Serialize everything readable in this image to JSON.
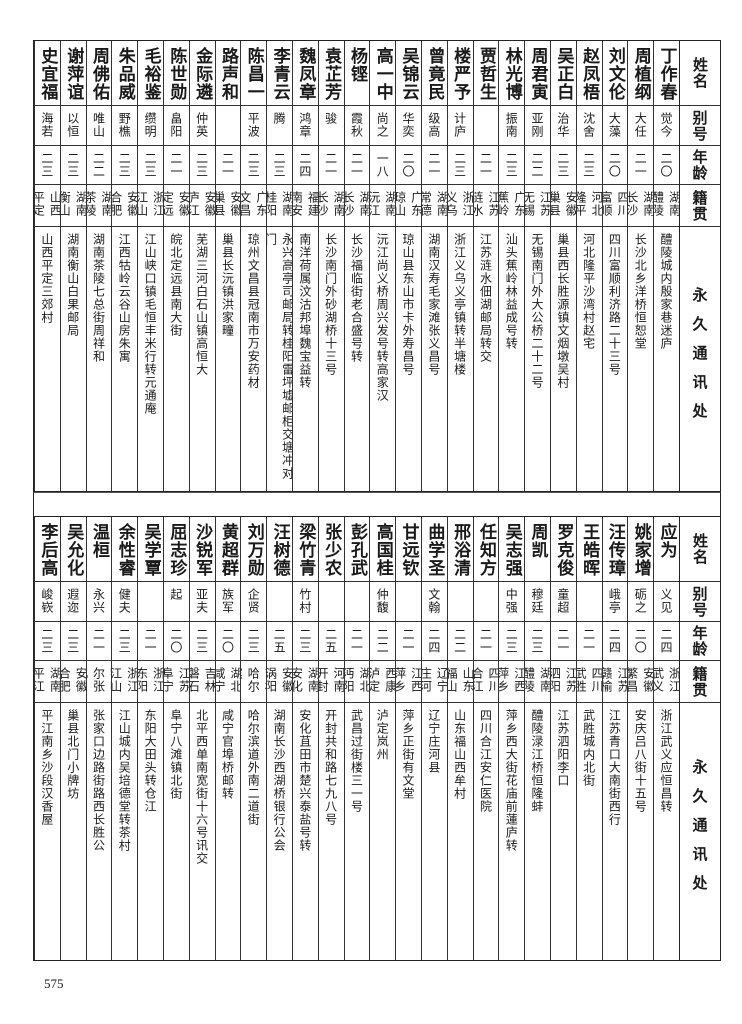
{
  "headers": {
    "name": "姓名",
    "alias": "别号",
    "age": "年龄",
    "origin": "籍贯",
    "address": "永久通讯处"
  },
  "top_table": [
    {
      "name": "丁作春",
      "alias": "觉今",
      "age": "二〇",
      "origin": "湖南醴陵",
      "address": "醴陵城内殷家巷迷庐"
    },
    {
      "name": "周植纲",
      "alias": "大任",
      "age": "二一",
      "origin": "湖南长沙",
      "address": "长沙北乡洋桥恒恕堂"
    },
    {
      "name": "刘文伦",
      "alias": "大藻",
      "age": "二〇",
      "origin": "四川富顺",
      "address": "四川富顺利济路二十三号"
    },
    {
      "name": "赵凤梧",
      "alias": "沈舍",
      "age": "二三",
      "origin": "河北隆平",
      "address": "河北隆平沙湾村赵宅"
    },
    {
      "name": "吴正白",
      "alias": "治华",
      "age": "二三",
      "origin": "安徽巢县",
      "address": "巢县西长胜源镇文烟墩吴村"
    },
    {
      "name": "周君寅",
      "alias": "亚刚",
      "age": "二二",
      "origin": "江苏无锡",
      "address": "无锡南门外大公桥二十二号"
    },
    {
      "name": "林光博",
      "alias": "振南",
      "age": "二三",
      "origin": "广东蕉岭",
      "address": "汕头蕉岭林益成号转"
    },
    {
      "name": "贾哲生",
      "alias": "",
      "age": "二一",
      "origin": "江苏涟水",
      "address": "江苏涟水佃湖邮局转交"
    },
    {
      "name": "楼严予",
      "alias": "计庐",
      "age": "二三",
      "origin": "浙江义乌",
      "address": "浙江义乌义亭镇转半塘楼"
    },
    {
      "name": "曾竟民",
      "alias": "级高",
      "age": "二一",
      "origin": "湖南常德",
      "address": "湖南汉寿毛家滩张义昌号"
    },
    {
      "name": "吴锦云",
      "alias": "华奕",
      "age": "二〇",
      "origin": "广东琼山",
      "address": "琼山县东山市卡外寿昌号"
    },
    {
      "name": "高一中",
      "alias": "尚之",
      "age": "一八",
      "origin": "湖南沅江",
      "address": "沅江尚义桥周兴发号转高家汉"
    },
    {
      "name": "杨铿",
      "alias": "霞秋",
      "age": "二一",
      "origin": "湖南长沙",
      "address": "长沙福临街老合盛号转"
    },
    {
      "name": "袁芷芳",
      "alias": "骏",
      "age": "二一",
      "origin": "湖南长沙",
      "address": "长沙南门外砂湖桥十三号"
    },
    {
      "name": "魏凤章",
      "alias": "鸿章",
      "age": "二四",
      "origin": "福建南安",
      "address": "南洋荷属汶沽邦埠魏宝益转"
    },
    {
      "name": "李青云",
      "alias": "腾",
      "age": "二三",
      "origin": "湖南桂阳",
      "address": "永兴高亭司邮局转桂阳雷坪墟邮柜交塘冲对门"
    },
    {
      "name": "陈昌一",
      "alias": "平波",
      "age": "二三",
      "origin": "广东文昌",
      "address": "琼州文昌县冠南市万安药材"
    },
    {
      "name": "路声和",
      "alias": "",
      "age": "二一",
      "origin": "安徽巢县",
      "address": "巢县长沅镇洪家疃"
    },
    {
      "name": "金际遴",
      "alias": "仲英",
      "age": "二三",
      "origin": "安徽庐江",
      "address": "芜湖三河白石山镇高恒大"
    },
    {
      "name": "陈世勋",
      "alias": "畠阳",
      "age": "二一",
      "origin": "安徽定远",
      "address": "皖北定远县南大街"
    },
    {
      "name": "毛裕鉴",
      "alias": "缵明",
      "age": "二三",
      "origin": "浙江江山",
      "address": "江山峡口镇毛恒丰米行转元通庵"
    },
    {
      "name": "朱品威",
      "alias": "野樵",
      "age": "二三",
      "origin": "安徽合肥",
      "address": "江西牯岭云谷山房朱寓"
    },
    {
      "name": "周佛佑",
      "alias": "唯山",
      "age": "二二",
      "origin": "湖南茶陵",
      "address": "湖南茶陵七总街周祥和"
    },
    {
      "name": "谢萍谊",
      "alias": "以恒",
      "age": "二三",
      "origin": "湖南衡山",
      "address": "湖南衡山白果邮局"
    },
    {
      "name": "史宜福",
      "alias": "海若",
      "age": "二三",
      "origin": "山西平定",
      "address": "山西平定三郊村"
    }
  ],
  "bottom_table": [
    {
      "name": "应为",
      "alias": "义见",
      "age": "二四",
      "origin": "浙江武义",
      "address": "浙江武义应恒昌转"
    },
    {
      "name": "姚家增",
      "alias": "砺之",
      "age": "二〇",
      "origin": "安徽繁昌",
      "address": "安庆吕八街十五号"
    },
    {
      "name": "汪传璋",
      "alias": "峨亭",
      "age": "二四",
      "origin": "江苏赣榆",
      "address": "江苏青口大南街西行"
    },
    {
      "name": "王皓晖",
      "alias": "",
      "age": "二一",
      "origin": "四川武胜",
      "address": "武胜城内北街"
    },
    {
      "name": "罗克俊",
      "alias": "童超",
      "age": "二一",
      "origin": "江苏泗阳",
      "address": "江苏泗阳李口"
    },
    {
      "name": "周凯",
      "alias": "穆廷",
      "age": "二三",
      "origin": "湖南醴陵",
      "address": "醴陵渌江桥恒隆蚌"
    },
    {
      "name": "吴志强",
      "alias": "中强",
      "age": "二三",
      "origin": "江西萍乡",
      "address": "萍乡西大街花庙前蓮庐转"
    },
    {
      "name": "任知方",
      "alias": "",
      "age": "二一",
      "origin": "四川合江",
      "address": "四川合江安仁医院"
    },
    {
      "name": "邢浴清",
      "alias": "",
      "age": "二二",
      "origin": "山东福山",
      "address": "山东福山西牟村"
    },
    {
      "name": "曲学圣",
      "alias": "文翰",
      "age": "二四",
      "origin": "辽宁庄河",
      "address": "辽宁庄河县"
    },
    {
      "name": "甘远钦",
      "alias": "",
      "age": "二一",
      "origin": "江西萍乡",
      "address": "萍乡正街有文堂"
    },
    {
      "name": "高国桂",
      "alias": "仲馥",
      "age": "二二",
      "origin": "西康泸定",
      "address": "泸定岚州"
    },
    {
      "name": "彭孔武",
      "alias": "",
      "age": "二一",
      "origin": "湖北沔阳",
      "address": "武昌过街楼三一号"
    },
    {
      "name": "张少农",
      "alias": "",
      "age": "二五",
      "origin": "河南开封",
      "address": "开封共和路七九八号"
    },
    {
      "name": "梁竹青",
      "alias": "竹村",
      "age": "二三",
      "origin": "湖南安化",
      "address": "安化苴田市楚兴泰盐号转"
    },
    {
      "name": "汪树德",
      "note": "①",
      "alias": "",
      "age": "二五",
      "origin": "安徽涡阳",
      "address": "湖南长沙西湖桥银行公会"
    },
    {
      "name": "刘万勋",
      "alias": "企贤",
      "age": "二三",
      "origin": "吉林哈尔滨",
      "address": "哈尔滨道外南二道街"
    },
    {
      "name": "黄超群",
      "alias": "族军",
      "age": "二〇",
      "origin": "湖北咸宁",
      "address": "咸宁官埠桥邮转"
    },
    {
      "name": "沙锐军",
      "alias": "亚夫",
      "age": "二三",
      "origin": "吉林磐石",
      "address": "北平西单南宽街十六号讯交"
    },
    {
      "name": "屈志珍",
      "alias": "起",
      "age": "二〇",
      "origin": "江苏阜宁",
      "address": "阜宁八滩镇北街"
    },
    {
      "name": "吴学覃",
      "alias": "",
      "age": "二一",
      "origin": "浙江东阳",
      "address": "东阳大田头转仓江"
    },
    {
      "name": "余性睿",
      "alias": "健夫",
      "age": "二三",
      "origin": "浙江江山",
      "address": "江山城内吴培德堂转茶村"
    },
    {
      "name": "温桓",
      "alias": "永兴",
      "age": "二一",
      "origin": "察哈尔张北",
      "address": "张家口边路街路西长胜公"
    },
    {
      "name": "吴允化",
      "alias": "遐迩",
      "age": "二三",
      "origin": "安徽合肥",
      "address": "巢县北门小牌坊"
    },
    {
      "name": "李后高",
      "alias": "峻嵚",
      "age": "二三",
      "origin": "湖南平江",
      "address": "平江南乡沙段汉香屋"
    }
  ],
  "page_number": "575"
}
